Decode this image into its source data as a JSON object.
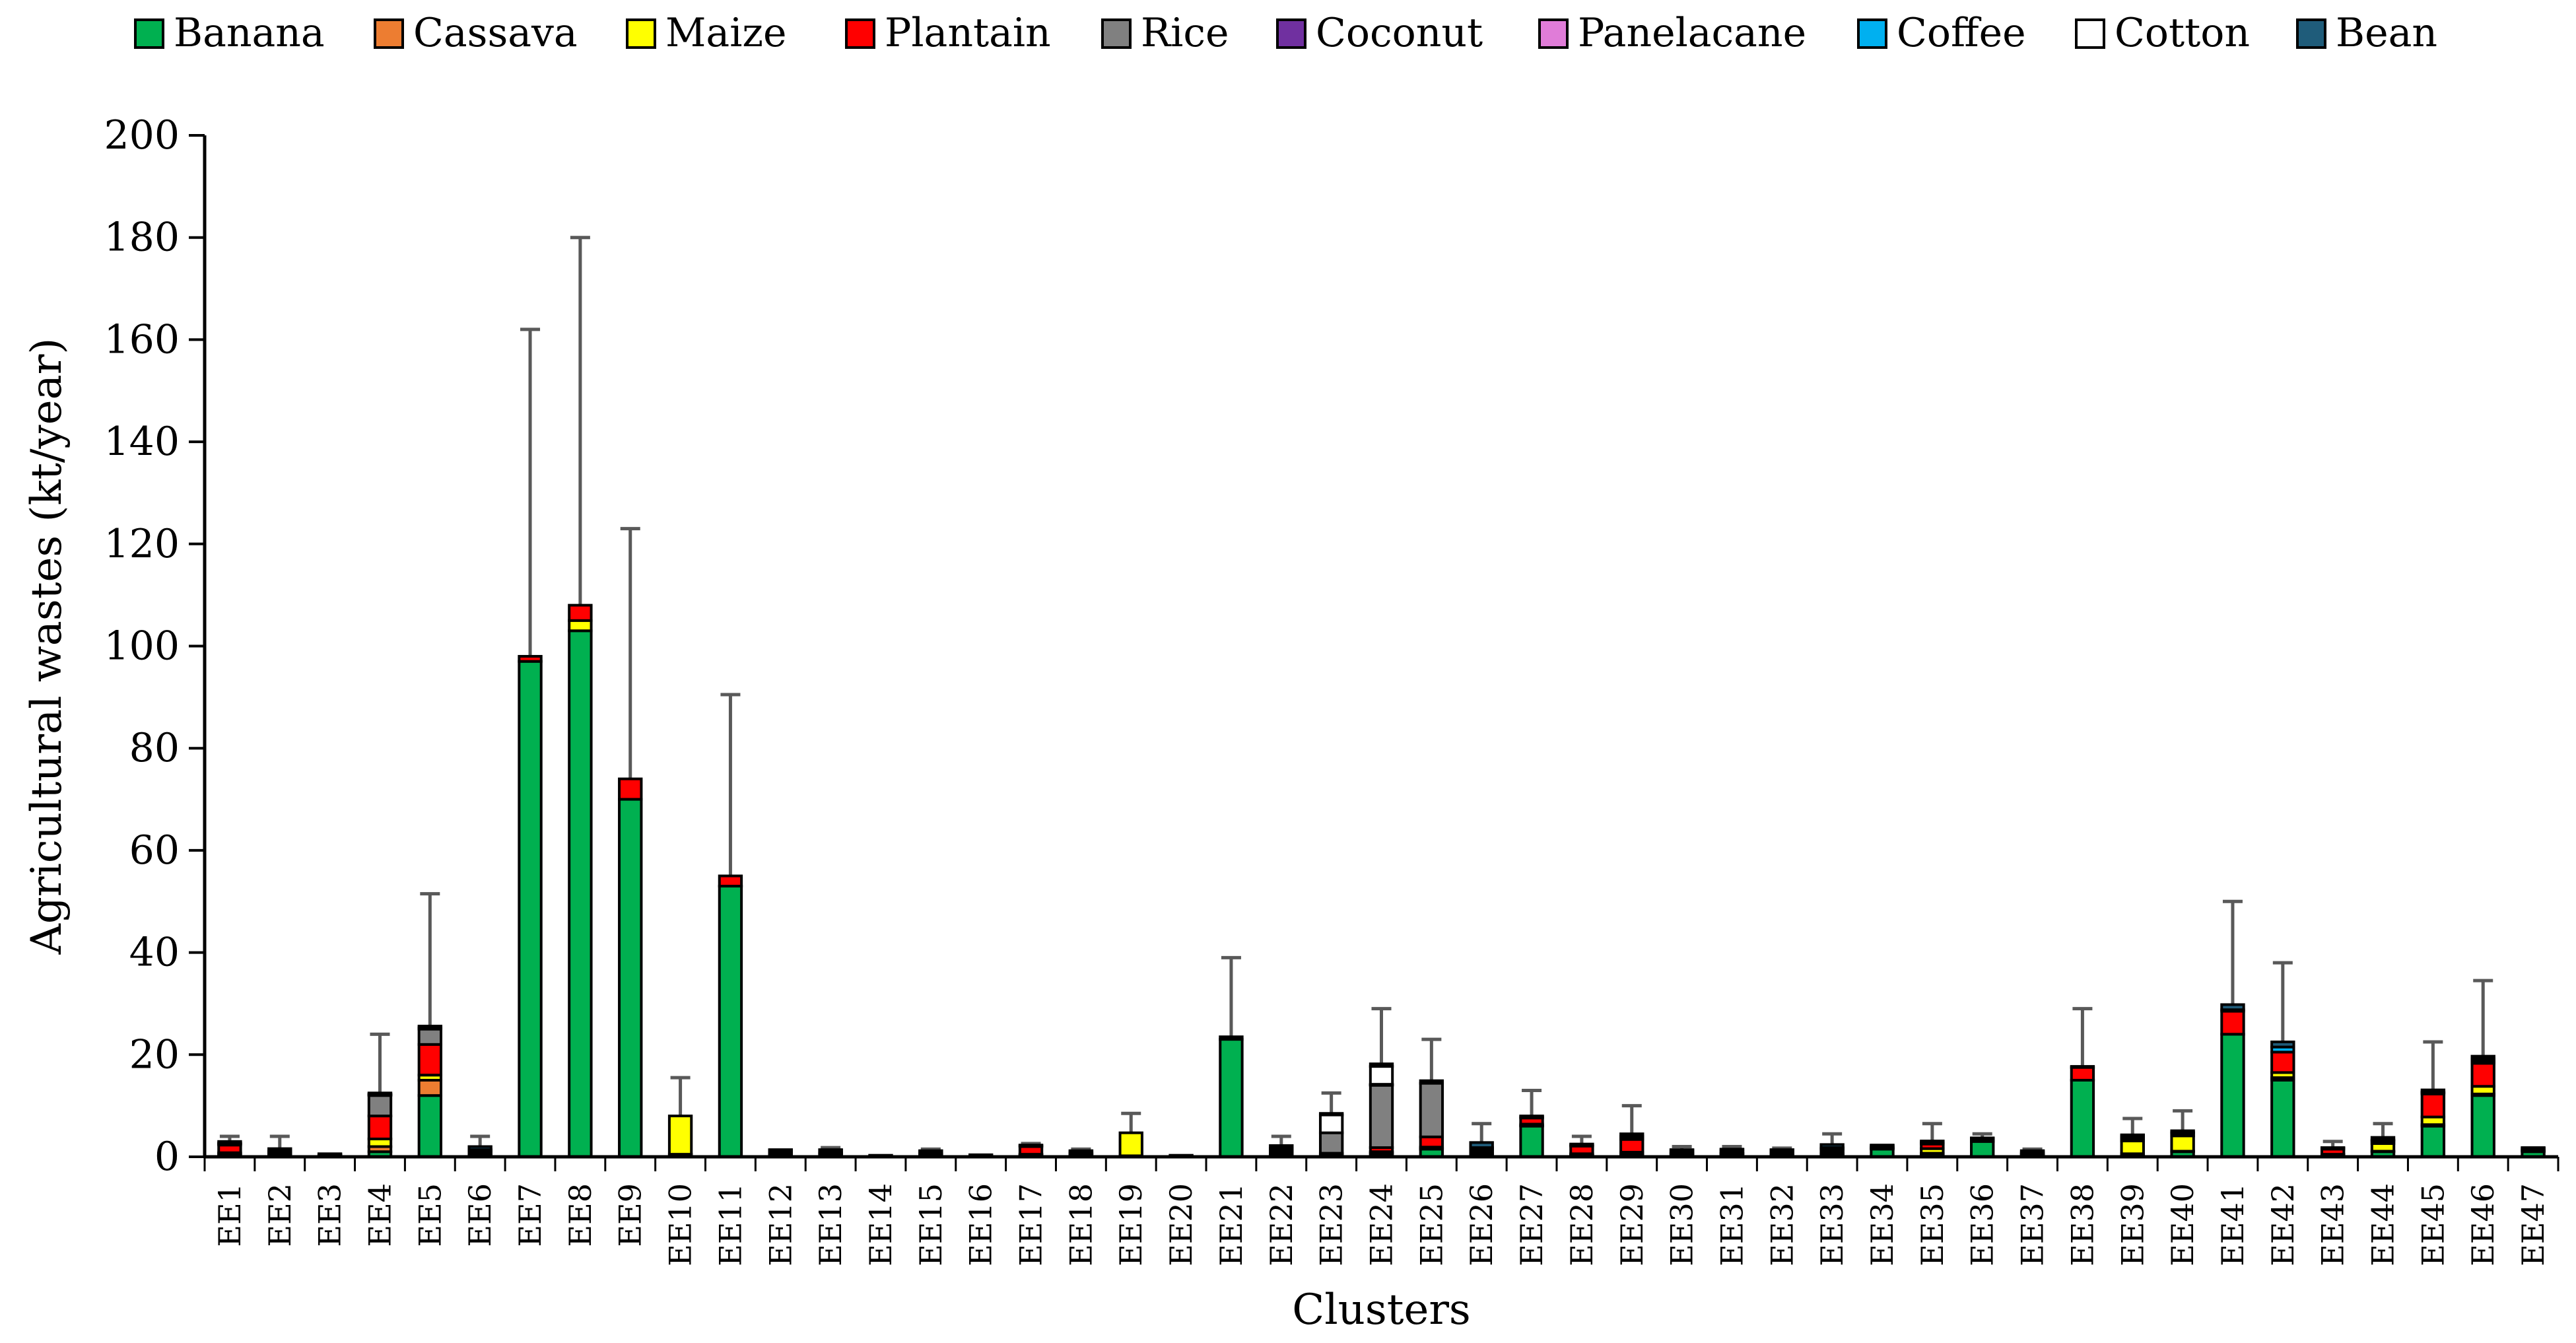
{
  "chart_data": {
    "type": "bar",
    "stacked": true,
    "title": "",
    "xlabel": "Clusters",
    "ylabel": "Agricultural wastes (kt/year)",
    "ylim": [
      0,
      200
    ],
    "yticks": [
      0,
      20,
      40,
      60,
      80,
      100,
      120,
      140,
      160,
      180,
      200
    ],
    "grid": false,
    "legend_position": "top",
    "error_bars": true,
    "categories": [
      "EE1",
      "EE2",
      "EE3",
      "EE4",
      "EE5",
      "EE6",
      "EE7",
      "EE8",
      "EE9",
      "EE10",
      "EE11",
      "EE12",
      "EE13",
      "EE14",
      "EE15",
      "EE16",
      "EE17",
      "EE18",
      "EE19",
      "EE20",
      "EE21",
      "EE22",
      "EE23",
      "EE24",
      "EE25",
      "EE26",
      "EE27",
      "EE28",
      "EE29",
      "EE30",
      "EE31",
      "EE32",
      "EE33",
      "EE34",
      "EE35",
      "EE36",
      "EE37",
      "EE38",
      "EE39",
      "EE40",
      "EE41",
      "EE42",
      "EE43",
      "EE44",
      "EE45",
      "EE46",
      "EE47"
    ],
    "series": [
      {
        "name": "Banana",
        "color": "#00B050",
        "values": [
          0.3,
          0.2,
          0.1,
          1,
          12,
          0.2,
          97,
          103,
          70,
          0.5,
          53,
          0.5,
          0.5,
          0.1,
          0.4,
          0.1,
          0.3,
          0.4,
          0.2,
          0.1,
          23,
          0.3,
          0.5,
          0.5,
          1.5,
          0.5,
          6,
          0.3,
          0.5,
          0.5,
          0.5,
          0.4,
          0.5,
          1.5,
          0.6,
          3,
          0.4,
          15,
          0.5,
          1,
          24,
          15,
          0.3,
          1,
          6,
          12,
          1
        ]
      },
      {
        "name": "Cassava",
        "color": "#ED7D31",
        "values": [
          0.3,
          0.1,
          0.1,
          1,
          3,
          0.1,
          0,
          0,
          0,
          0,
          0,
          0.1,
          0.1,
          0,
          0.1,
          0,
          0.1,
          0.1,
          0,
          0,
          0,
          0.1,
          0,
          0.3,
          0.1,
          0.1,
          0.1,
          0.1,
          0.1,
          0.1,
          0.1,
          0.1,
          0.1,
          0.1,
          0.1,
          0.1,
          0.1,
          0,
          0.1,
          0.1,
          0,
          0.5,
          0.1,
          0.1,
          0.3,
          0.3,
          0.1
        ]
      },
      {
        "name": "Maize",
        "color": "#FFFF00",
        "values": [
          0.2,
          0.1,
          0.1,
          1.5,
          1,
          0.1,
          0,
          2,
          0,
          7.5,
          0,
          0.1,
          0.1,
          0,
          0.1,
          0,
          0.1,
          0.1,
          4.5,
          0,
          0,
          0.2,
          0.2,
          0.2,
          0.3,
          0.2,
          0.3,
          0.2,
          0.3,
          0.1,
          0.1,
          0.1,
          0.2,
          0.1,
          0.9,
          0.1,
          0.1,
          0,
          2.5,
          3,
          0,
          1,
          0.1,
          1.5,
          1.5,
          1.5,
          0.1
        ]
      },
      {
        "name": "Plantain",
        "color": "#FF0000",
        "values": [
          1.5,
          0.2,
          0.1,
          4.5,
          6,
          0.5,
          1,
          3,
          4,
          0,
          2,
          0.2,
          0.2,
          0,
          0.2,
          0,
          1.5,
          0.2,
          0,
          0,
          0.5,
          0.5,
          0,
          0.8,
          2,
          0.5,
          1.2,
          1.5,
          2.5,
          0.3,
          0.3,
          0.3,
          0.5,
          0.2,
          0.9,
          0.2,
          0.2,
          2.5,
          0.5,
          0.5,
          4.5,
          4,
          1,
          0.5,
          4.5,
          4.5,
          0.2
        ]
      },
      {
        "name": "Rice",
        "color": "#808080",
        "values": [
          0.2,
          0.2,
          0.2,
          4,
          3,
          0.2,
          0,
          0,
          0,
          0,
          0,
          0.4,
          0.4,
          0.2,
          0.3,
          0.3,
          0.2,
          0.3,
          0,
          0.2,
          0,
          0.3,
          4,
          12.2,
          10.5,
          0.2,
          0.2,
          0.2,
          0.3,
          0.3,
          0.4,
          0.4,
          0.2,
          0.3,
          0.3,
          0.2,
          0.3,
          0,
          0.2,
          0.2,
          0,
          0,
          0.2,
          0.2,
          0.2,
          0.2,
          0.3
        ]
      },
      {
        "name": "Coconut",
        "color": "#7030A0",
        "values": [
          0.1,
          0.1,
          0,
          0.1,
          0.1,
          0.1,
          0,
          0,
          0,
          0,
          0,
          0,
          0,
          0,
          0,
          0,
          0,
          0,
          0,
          0,
          0,
          0.1,
          0,
          0.1,
          0,
          0.1,
          0,
          0,
          0.1,
          0,
          0,
          0,
          0.1,
          0,
          0,
          0,
          0,
          0,
          0.1,
          0,
          0,
          0,
          0,
          0,
          0.1,
          0.1,
          0
        ]
      },
      {
        "name": "Panelacane",
        "color": "#E07CD8",
        "values": [
          0.1,
          0.1,
          0,
          0.1,
          0.1,
          0.1,
          0,
          0,
          0,
          0,
          0,
          0,
          0,
          0,
          0,
          0,
          0,
          0,
          0,
          0,
          0,
          0.1,
          0,
          0.1,
          0,
          0.1,
          0,
          0,
          0.1,
          0,
          0,
          0,
          0.1,
          0,
          0,
          0,
          0,
          0,
          0.1,
          0,
          0,
          0,
          0,
          0,
          0.1,
          0.1,
          0
        ]
      },
      {
        "name": "Coffee",
        "color": "#00B0F0",
        "values": [
          0,
          0.1,
          0,
          0.1,
          0.1,
          0.1,
          0,
          0,
          0,
          0,
          0,
          0,
          0,
          0,
          0,
          0,
          0,
          0,
          0,
          0,
          0,
          0.1,
          0,
          0,
          0,
          0.1,
          0,
          0,
          0.1,
          0,
          0,
          0,
          0.1,
          0,
          0,
          0,
          0,
          0,
          0,
          0,
          0.3,
          1,
          0,
          0,
          0,
          0.5,
          0
        ]
      },
      {
        "name": "Cotton",
        "color": "#FFFFFF",
        "values": [
          0,
          0,
          0,
          0,
          0,
          0,
          0,
          0,
          0,
          0,
          0,
          0,
          0,
          0,
          0,
          0,
          0,
          0,
          0,
          0,
          0,
          0,
          3.5,
          3.5,
          0,
          0,
          0,
          0,
          0,
          0,
          0,
          0,
          0,
          0,
          0,
          0,
          0,
          0,
          0,
          0,
          0,
          0,
          0,
          0,
          0,
          0,
          0
        ]
      },
      {
        "name": "Bean",
        "color": "#1F5C7A",
        "values": [
          0.3,
          0.5,
          0,
          0.2,
          0.3,
          0.6,
          0,
          0,
          0,
          0,
          0,
          0.1,
          0.1,
          0,
          0.1,
          0,
          0.1,
          0.1,
          0,
          0,
          0,
          0.5,
          0.3,
          0.5,
          0.5,
          1,
          0.2,
          0.2,
          0.5,
          0.1,
          0.1,
          0.1,
          0.6,
          0.1,
          0.3,
          0.1,
          0.1,
          0.2,
          0.3,
          0.3,
          1,
          1,
          0.1,
          0.5,
          0.4,
          0.5,
          0.1
        ]
      }
    ],
    "totals": [
      3,
      1.6,
      0.6,
      12.5,
      25.6,
      2,
      98,
      108,
      74,
      8,
      55,
      1.4,
      1.4,
      0.3,
      1.2,
      0.4,
      2.3,
      1.2,
      4.7,
      0.3,
      23.5,
      2.2,
      8.5,
      18.2,
      14.9,
      2.8,
      8,
      2.5,
      4.6,
      1.4,
      1.5,
      1.4,
      2.4,
      2.3,
      3.1,
      3.6,
      1.2,
      17.7,
      4.3,
      5.1,
      29.8,
      22.5,
      1.8,
      3.8,
      13.1,
      19.7,
      1.8
    ],
    "error_upper": [
      4,
      4,
      0.6,
      24,
      51.5,
      4,
      162,
      180,
      123,
      15.5,
      90.5,
      1.4,
      1.8,
      0.3,
      1.5,
      0.4,
      2.6,
      1.5,
      8.5,
      0.3,
      39,
      4,
      12.5,
      29,
      23,
      6.5,
      13,
      4,
      10,
      2,
      2,
      1.7,
      4.5,
      2.3,
      6.5,
      4.5,
      1.5,
      29,
      7.5,
      9,
      50,
      38,
      3,
      6.5,
      22.5,
      34.5,
      1.8
    ]
  }
}
